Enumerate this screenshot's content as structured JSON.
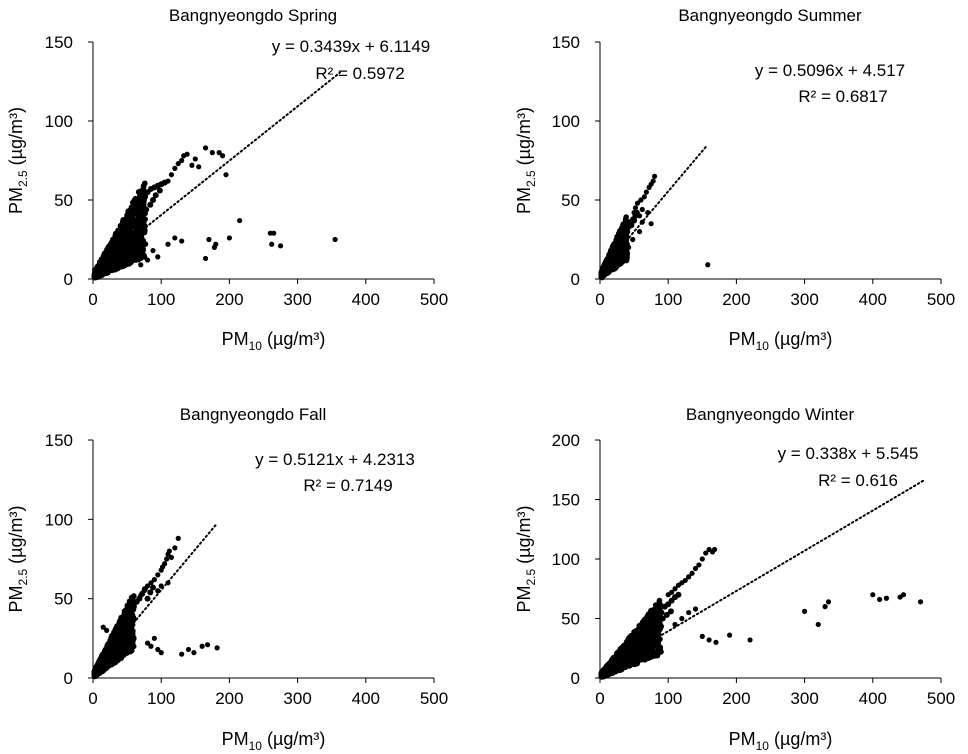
{
  "chart_data": [
    {
      "type": "scatter",
      "title": "Bangnyeongdo Spring",
      "xlabel": {
        "base": "PM",
        "sub": "10",
        "unit": " (µg/m³)"
      },
      "ylabel": {
        "base": "PM",
        "sub": "2.5",
        "unit": " (µg/m³)"
      },
      "xlim": [
        0,
        500
      ],
      "ylim": [
        0,
        150
      ],
      "xticks": [
        0,
        100,
        200,
        300,
        400,
        500
      ],
      "yticks": [
        0,
        50,
        100,
        150
      ],
      "equation": "y = 0.3439x + 6.1149",
      "r2": "R² = 0.5972",
      "trend": {
        "slope": 0.3439,
        "intercept": 6.1149,
        "xrange": [
          0,
          362
        ]
      },
      "cluster": {
        "slope_upper": 0.78,
        "slope_lower": 0.18,
        "xmax": 75,
        "count": 900
      },
      "points": [
        [
          110,
          62
        ],
        [
          115,
          66
        ],
        [
          120,
          70
        ],
        [
          125,
          73
        ],
        [
          130,
          75
        ],
        [
          133,
          78
        ],
        [
          138,
          79
        ],
        [
          145,
          72
        ],
        [
          150,
          76
        ],
        [
          155,
          71
        ],
        [
          165,
          83
        ],
        [
          175,
          80
        ],
        [
          185,
          80
        ],
        [
          190,
          78
        ],
        [
          195,
          66
        ],
        [
          130,
          24
        ],
        [
          165,
          13
        ],
        [
          170,
          25
        ],
        [
          178,
          20
        ],
        [
          180,
          22
        ],
        [
          200,
          26
        ],
        [
          215,
          37
        ],
        [
          260,
          29
        ],
        [
          262,
          22
        ],
        [
          265,
          29
        ],
        [
          275,
          21
        ],
        [
          355,
          25
        ],
        [
          80,
          12
        ],
        [
          95,
          14
        ],
        [
          110,
          22
        ],
        [
          120,
          26
        ],
        [
          88,
          18
        ],
        [
          70,
          9
        ]
      ],
      "dense": [
        [
          60,
          45
        ],
        [
          65,
          48
        ],
        [
          70,
          50
        ],
        [
          75,
          52
        ],
        [
          80,
          55
        ],
        [
          85,
          57
        ],
        [
          90,
          58
        ],
        [
          95,
          59
        ],
        [
          100,
          60
        ],
        [
          105,
          61
        ],
        [
          72,
          40
        ],
        [
          78,
          44
        ],
        [
          84,
          47
        ],
        [
          88,
          50
        ],
        [
          92,
          53
        ],
        [
          98,
          56
        ]
      ]
    },
    {
      "type": "scatter",
      "title": "Bangnyeongdo Summer",
      "xlabel": {
        "base": "PM",
        "sub": "10",
        "unit": " (µg/m³)"
      },
      "ylabel": {
        "base": "PM",
        "sub": "2.5",
        "unit": " (µg/m³)"
      },
      "xlim": [
        0,
        500
      ],
      "ylim": [
        0,
        150
      ],
      "xticks": [
        0,
        100,
        200,
        300,
        400,
        500
      ],
      "yticks": [
        0,
        50,
        100,
        150
      ],
      "equation": "y = 0.5096x + 4.517",
      "r2": "R² = 0.6817",
      "trend": {
        "slope": 0.5096,
        "intercept": 4.517,
        "xrange": [
          0,
          155
        ]
      },
      "cluster": {
        "slope_upper": 0.95,
        "slope_lower": 0.3,
        "xmax": 38,
        "count": 500
      },
      "points": [
        [
          45,
          35
        ],
        [
          48,
          38
        ],
        [
          50,
          42
        ],
        [
          52,
          45
        ],
        [
          55,
          48
        ],
        [
          58,
          40
        ],
        [
          60,
          50
        ],
        [
          62,
          44
        ],
        [
          65,
          52
        ],
        [
          68,
          55
        ],
        [
          72,
          58
        ],
        [
          75,
          60
        ],
        [
          78,
          62
        ],
        [
          80,
          65
        ],
        [
          58,
          30
        ],
        [
          62,
          36
        ],
        [
          70,
          42
        ],
        [
          75,
          35
        ],
        [
          158,
          9
        ],
        [
          42,
          20
        ],
        [
          48,
          25
        ]
      ],
      "dense": [
        [
          40,
          30
        ],
        [
          42,
          33
        ],
        [
          44,
          36
        ],
        [
          46,
          34
        ],
        [
          50,
          37
        ],
        [
          52,
          40
        ],
        [
          54,
          42
        ]
      ]
    },
    {
      "type": "scatter",
      "title": "Bangnyeongdo Fall",
      "xlabel": {
        "base": "PM",
        "sub": "10",
        "unit": " (µg/m³)"
      },
      "ylabel": {
        "base": "PM",
        "sub": "2.5",
        "unit": " (µg/m³)"
      },
      "xlim": [
        0,
        500
      ],
      "ylim": [
        0,
        150
      ],
      "xticks": [
        0,
        100,
        200,
        300,
        400,
        500
      ],
      "yticks": [
        0,
        50,
        100,
        150
      ],
      "equation": "y = 0.5121x + 4.2313",
      "r2": "R² = 0.7149",
      "trend": {
        "slope": 0.5121,
        "intercept": 4.2313,
        "xrange": [
          0,
          182
        ]
      },
      "cluster": {
        "slope_upper": 0.85,
        "slope_lower": 0.3,
        "xmax": 58,
        "count": 800
      },
      "points": [
        [
          70,
          52
        ],
        [
          75,
          55
        ],
        [
          80,
          58
        ],
        [
          85,
          60
        ],
        [
          90,
          62
        ],
        [
          95,
          65
        ],
        [
          100,
          68
        ],
        [
          102,
          70
        ],
        [
          105,
          72
        ],
        [
          108,
          75
        ],
        [
          110,
          78
        ],
        [
          112,
          80
        ],
        [
          115,
          76
        ],
        [
          120,
          82
        ],
        [
          125,
          88
        ],
        [
          95,
          55
        ],
        [
          100,
          58
        ],
        [
          110,
          60
        ],
        [
          80,
          22
        ],
        [
          85,
          20
        ],
        [
          90,
          25
        ],
        [
          95,
          18
        ],
        [
          100,
          16
        ],
        [
          130,
          15
        ],
        [
          140,
          18
        ],
        [
          148,
          16
        ],
        [
          160,
          20
        ],
        [
          168,
          21
        ],
        [
          182,
          19
        ],
        [
          15,
          32
        ],
        [
          20,
          30
        ]
      ],
      "dense": [
        [
          60,
          45
        ],
        [
          64,
          48
        ],
        [
          68,
          50
        ],
        [
          72,
          53
        ],
        [
          76,
          56
        ],
        [
          80,
          50
        ],
        [
          84,
          54
        ],
        [
          88,
          57
        ]
      ]
    },
    {
      "type": "scatter",
      "title": "Bangnyeongdo Winter",
      "xlabel": {
        "base": "PM",
        "sub": "10",
        "unit": " (µg/m³)"
      },
      "ylabel": {
        "base": "PM",
        "sub": "2.5",
        "unit": " (µg/m³)"
      },
      "xlim": [
        0,
        500
      ],
      "ylim": [
        0,
        200
      ],
      "xticks": [
        0,
        100,
        200,
        300,
        400,
        500
      ],
      "yticks": [
        0,
        50,
        100,
        150,
        200
      ],
      "equation": "y = 0.338x + 5.545",
      "r2": "R² = 0.616",
      "trend": {
        "slope": 0.338,
        "intercept": 5.545,
        "xrange": [
          0,
          475
        ]
      },
      "cluster": {
        "slope_upper": 0.72,
        "slope_lower": 0.22,
        "xmax": 88,
        "count": 900
      },
      "points": [
        [
          100,
          70
        ],
        [
          105,
          72
        ],
        [
          110,
          75
        ],
        [
          115,
          78
        ],
        [
          120,
          80
        ],
        [
          125,
          82
        ],
        [
          130,
          85
        ],
        [
          135,
          88
        ],
        [
          140,
          92
        ],
        [
          145,
          95
        ],
        [
          150,
          100
        ],
        [
          155,
          105
        ],
        [
          160,
          108
        ],
        [
          165,
          106
        ],
        [
          168,
          108
        ],
        [
          120,
          50
        ],
        [
          130,
          55
        ],
        [
          140,
          58
        ],
        [
          110,
          45
        ],
        [
          150,
          35
        ],
        [
          160,
          32
        ],
        [
          170,
          30
        ],
        [
          190,
          36
        ],
        [
          220,
          32
        ],
        [
          300,
          56
        ],
        [
          320,
          45
        ],
        [
          330,
          60
        ],
        [
          335,
          64
        ],
        [
          400,
          70
        ],
        [
          410,
          66
        ],
        [
          420,
          67
        ],
        [
          440,
          68
        ],
        [
          445,
          70
        ],
        [
          470,
          64
        ]
      ],
      "dense": [
        [
          90,
          55
        ],
        [
          95,
          60
        ],
        [
          100,
          62
        ],
        [
          105,
          65
        ],
        [
          110,
          68
        ],
        [
          115,
          70
        ],
        [
          92,
          50
        ],
        [
          98,
          53
        ],
        [
          104,
          56
        ]
      ]
    }
  ]
}
